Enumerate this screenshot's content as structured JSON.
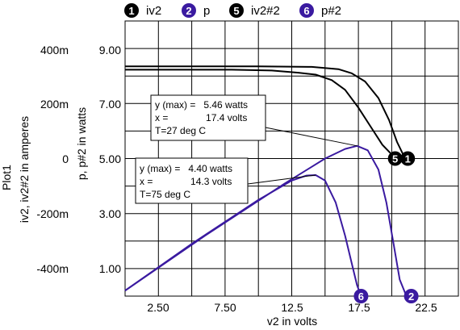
{
  "chart_data": {
    "type": "line",
    "title": "",
    "plot_name": "Plot1",
    "xlabel": "v2 in volts",
    "ylabel_left": "iv2, iv2#2 in amperes",
    "ylabel_right": "p, p#2 in watts",
    "xlim": [
      0,
      25
    ],
    "ylim_left": [
      -0.5,
      0.5
    ],
    "ylim_right": [
      0,
      10
    ],
    "grid": true,
    "legend_position": "top",
    "x_ticks": [
      "2.50",
      "7.50",
      "12.5",
      "17.5",
      "22.5"
    ],
    "y_ticks_left": [
      "400m",
      "200m",
      "0",
      "-200m",
      "-400m"
    ],
    "y_ticks_right": [
      "9.00",
      "7.00",
      "5.00",
      "3.00",
      "1.00"
    ],
    "colors": {
      "black": "#000000",
      "purple": "#3a1aa0"
    },
    "series": [
      {
        "name": "iv2",
        "marker": "1",
        "color": "#000000",
        "axis": "left",
        "x": [
          0,
          10,
          14,
          16,
          17,
          18,
          19,
          19.8,
          20.4,
          20.9,
          21.2
        ],
        "y": [
          0.335,
          0.335,
          0.333,
          0.325,
          0.31,
          0.28,
          0.22,
          0.14,
          0.06,
          0.01,
          0.0
        ]
      },
      {
        "name": "p",
        "marker": "2",
        "color": "#3a1aa0",
        "axis": "right",
        "x": [
          0,
          6,
          12,
          15,
          16.5,
          17.4,
          18.2,
          19.0,
          19.6,
          20.1,
          20.6,
          21.1
        ],
        "y": [
          0.2,
          2.2,
          4.1,
          5.0,
          5.35,
          5.46,
          5.3,
          4.6,
          3.4,
          2.0,
          0.6,
          0.0
        ]
      },
      {
        "name": "iv2#2",
        "marker": "5",
        "color": "#000000",
        "axis": "left",
        "x": [
          0,
          8,
          11,
          13,
          14.3,
          15.5,
          16.5,
          17.5,
          18.5,
          19.3,
          20.0,
          20.5
        ],
        "y": [
          0.323,
          0.323,
          0.32,
          0.312,
          0.305,
          0.285,
          0.25,
          0.185,
          0.11,
          0.05,
          0.015,
          0.0
        ]
      },
      {
        "name": "p#2",
        "marker": "6",
        "color": "#3a1aa0",
        "axis": "right",
        "x": [
          0,
          5,
          10,
          12.5,
          13.6,
          14.3,
          15.0,
          15.8,
          16.5,
          17.0,
          17.4,
          17.7
        ],
        "y": [
          0.2,
          1.9,
          3.5,
          4.2,
          4.38,
          4.4,
          4.2,
          3.4,
          2.2,
          1.2,
          0.4,
          0.0
        ]
      }
    ],
    "annotations": [
      {
        "lines": [
          "y (max) =   5.46 watts",
          "x =              17.4 volts",
          "T=27 deg C"
        ],
        "target_x": 17.4,
        "target_y": 5.46
      },
      {
        "lines": [
          "y (max) =   4.40 watts",
          "x =              14.3 volts",
          "T=75 deg C"
        ],
        "target_x": 14.3,
        "target_y": 4.4
      }
    ]
  }
}
